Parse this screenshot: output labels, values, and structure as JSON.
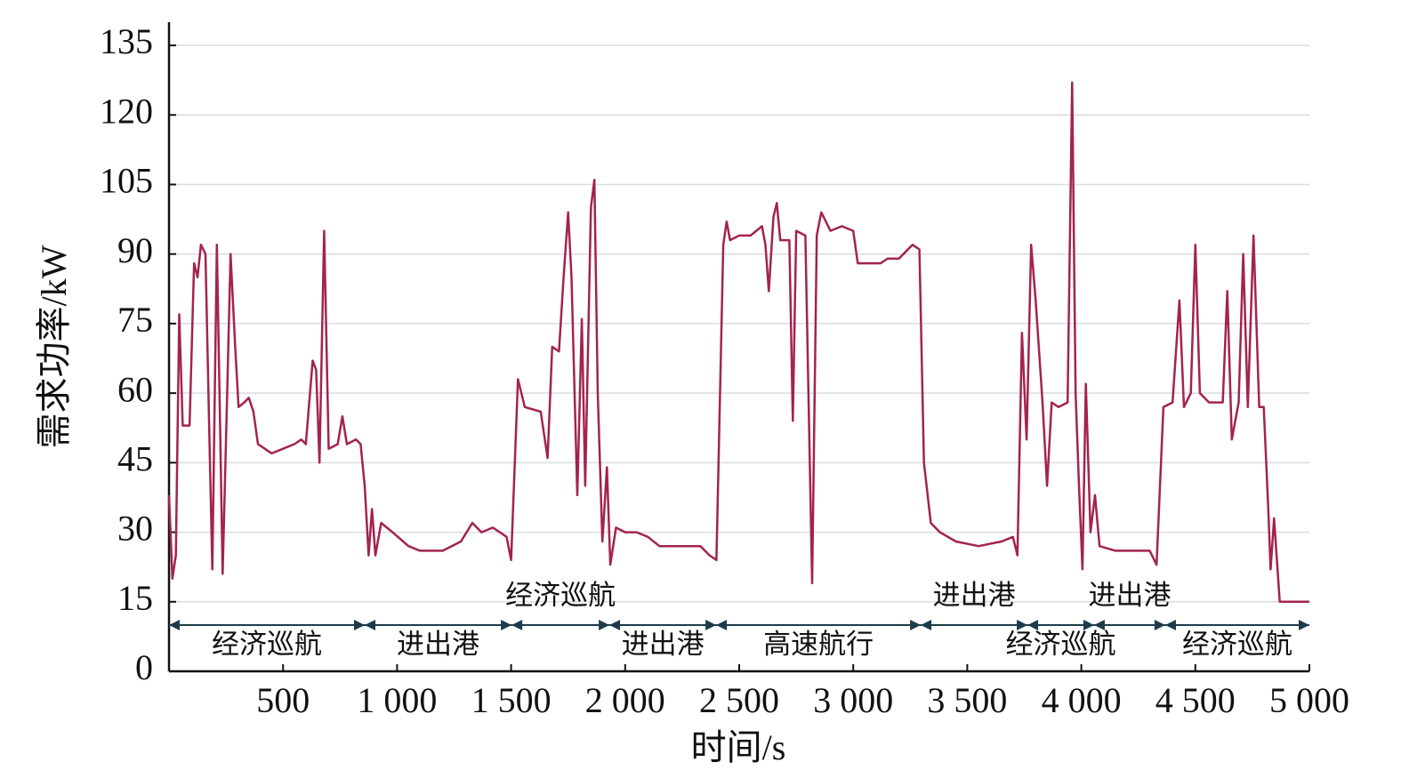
{
  "chart_data": {
    "type": "line",
    "xlabel": "时间/s",
    "ylabel": "需求功率/kW",
    "xlim": [
      0,
      5000
    ],
    "ylim": [
      0,
      140
    ],
    "xticks": [
      500,
      {
        "value": 1000,
        "label": "1 000"
      },
      {
        "value": 1500,
        "label": "1 500"
      },
      {
        "value": 2000,
        "label": "2 000"
      },
      {
        "value": 2500,
        "label": "2 500"
      },
      {
        "value": 3000,
        "label": "3 000"
      },
      {
        "value": 3500,
        "label": "3 500"
      },
      {
        "value": 4000,
        "label": "4 000"
      },
      {
        "value": 4500,
        "label": "4 500"
      },
      {
        "value": 5000,
        "label": "5 000"
      }
    ],
    "yticks": [
      0,
      15,
      30,
      45,
      60,
      75,
      90,
      105,
      120,
      135
    ],
    "grid": true,
    "series": [
      {
        "color": "#a3234f",
        "x": [
          0,
          15,
          30,
          45,
          60,
          90,
          110,
          125,
          140,
          160,
          175,
          190,
          210,
          225,
          235,
          255,
          270,
          290,
          305,
          330,
          350,
          370,
          390,
          420,
          450,
          500,
          550,
          580,
          600,
          630,
          645,
          660,
          680,
          700,
          740,
          760,
          780,
          820,
          840,
          858,
          875,
          890,
          905,
          930,
          980,
          1050,
          1100,
          1200,
          1280,
          1330,
          1370,
          1420,
          1480,
          1500,
          1530,
          1560,
          1630,
          1660,
          1680,
          1710,
          1730,
          1750,
          1765,
          1790,
          1810,
          1825,
          1850,
          1865,
          1880,
          1900,
          1920,
          1935,
          1960,
          2000,
          2050,
          2100,
          2150,
          2250,
          2330,
          2370,
          2400,
          2430,
          2445,
          2460,
          2500,
          2550,
          2600,
          2615,
          2630,
          2650,
          2665,
          2680,
          2720,
          2735,
          2750,
          2790,
          2820,
          2840,
          2860,
          2900,
          2950,
          3000,
          3020,
          3080,
          3120,
          3150,
          3200,
          3260,
          3290,
          3310,
          3340,
          3380,
          3450,
          3550,
          3650,
          3700,
          3720,
          3740,
          3760,
          3780,
          3800,
          3830,
          3850,
          3870,
          3900,
          3940,
          3960,
          3975,
          3990,
          4005,
          4020,
          4040,
          4060,
          4080,
          4150,
          4250,
          4300,
          4330,
          4360,
          4400,
          4430,
          4450,
          4480,
          4500,
          4520,
          4560,
          4620,
          4640,
          4660,
          4690,
          4710,
          4730,
          4755,
          4780,
          4800,
          4820,
          4830,
          4845,
          4870,
          5000
        ],
        "values": [
          38,
          20,
          25,
          77,
          53,
          53,
          88,
          85,
          92,
          90,
          55,
          22,
          92,
          50,
          21,
          60,
          90,
          70,
          57,
          58,
          59,
          56,
          49,
          48,
          47,
          48,
          49,
          50,
          49,
          67,
          65,
          45,
          95,
          48,
          49,
          55,
          49,
          50,
          49,
          40,
          25,
          35,
          25,
          32,
          30,
          27,
          26,
          26,
          28,
          32,
          30,
          31,
          29,
          24,
          63,
          57,
          56,
          46,
          70,
          69,
          85,
          99,
          85,
          38,
          76,
          40,
          100,
          106,
          60,
          28,
          44,
          23,
          31,
          30,
          30,
          29,
          27,
          27,
          27,
          25,
          24,
          92,
          97,
          93,
          94,
          94,
          96,
          92,
          82,
          98,
          101,
          93,
          93,
          54,
          95,
          94,
          19,
          94,
          99,
          95,
          96,
          95,
          88,
          88,
          88,
          89,
          89,
          92,
          91,
          45,
          32,
          30,
          28,
          27,
          28,
          29,
          25,
          73,
          50,
          92,
          80,
          58,
          40,
          58,
          57,
          58,
          127,
          60,
          40,
          22,
          62,
          30,
          38,
          27,
          26,
          26,
          26,
          23,
          57,
          58,
          80,
          57,
          60,
          92,
          60,
          58,
          58,
          82,
          50,
          58,
          90,
          57,
          94,
          57,
          57,
          35,
          22,
          33,
          15,
          15
        ]
      }
    ],
    "annotations": [
      {
        "text": "经济巡航",
        "start": 0,
        "end": 858,
        "position": "below"
      },
      {
        "text": "进出港",
        "start": 858,
        "end": 1502,
        "position": "below"
      },
      {
        "text": "经济巡航",
        "start": 1502,
        "end": 1931,
        "position": "above"
      },
      {
        "text": "进出港",
        "start": 1931,
        "end": 2399,
        "position": "below"
      },
      {
        "text": "高速航行",
        "start": 2399,
        "end": 3296,
        "position": "below"
      },
      {
        "text": "进出港",
        "start": 3296,
        "end": 3764,
        "position": "above"
      },
      {
        "text": "经济巡航",
        "start": 3764,
        "end": 4056,
        "position": "below"
      },
      {
        "text": "进出港",
        "start": 4056,
        "end": 4368,
        "position": "above"
      },
      {
        "text": "经济巡航",
        "start": 4368,
        "end": 5000,
        "position": "below"
      }
    ]
  }
}
